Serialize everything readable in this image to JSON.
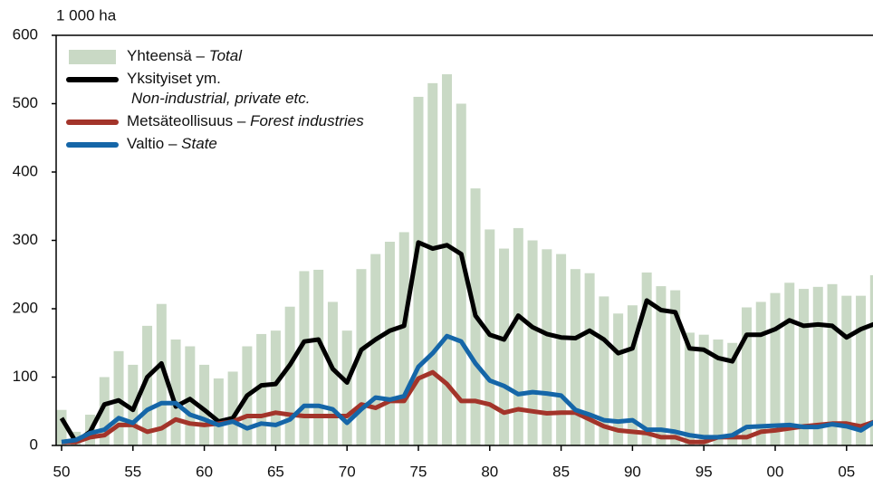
{
  "chart_data": {
    "type": "bar",
    "y_label": "1 000 ha",
    "categories": [
      "50",
      null,
      null,
      null,
      null,
      "55",
      null,
      null,
      null,
      null,
      "60",
      null,
      null,
      null,
      null,
      "65",
      null,
      null,
      null,
      null,
      "70",
      null,
      null,
      null,
      null,
      "75",
      null,
      null,
      null,
      null,
      "80",
      null,
      null,
      null,
      null,
      "85",
      null,
      null,
      null,
      null,
      "90",
      null,
      null,
      null,
      null,
      "95",
      null,
      null,
      null,
      null,
      "00",
      null,
      null,
      null,
      null,
      "05",
      null,
      null
    ],
    "ylim": [
      0,
      600
    ],
    "yticks": [
      0,
      100,
      200,
      300,
      400,
      500,
      600
    ],
    "grid": false,
    "series": [
      {
        "type": "bar",
        "color": "#c9d9c5",
        "name": [
          {
            "text": "Yhteensä – "
          },
          {
            "text": "Total",
            "italic": true
          }
        ],
        "values": [
          52,
          20,
          45,
          100,
          138,
          118,
          175,
          207,
          155,
          145,
          118,
          98,
          108,
          145,
          163,
          168,
          203,
          255,
          257,
          210,
          168,
          258,
          280,
          298,
          312,
          510,
          530,
          543,
          500,
          376,
          316,
          288,
          318,
          300,
          287,
          280,
          258,
          252,
          218,
          193,
          205,
          253,
          233,
          227,
          165,
          162,
          155,
          150,
          202,
          210,
          223,
          238,
          229,
          232,
          236,
          219,
          219,
          249
        ]
      },
      {
        "type": "line",
        "color": "#000000",
        "name": [
          {
            "text": "Yksityiset ym."
          },
          {
            "text": "Non-industrial, private etc.",
            "italic": true,
            "newline": true
          }
        ],
        "values": [
          40,
          5,
          20,
          60,
          66,
          52,
          100,
          120,
          57,
          68,
          52,
          35,
          40,
          73,
          88,
          90,
          118,
          152,
          155,
          112,
          92,
          140,
          155,
          168,
          175,
          297,
          288,
          293,
          280,
          190,
          162,
          155,
          190,
          173,
          163,
          158,
          157,
          168,
          155,
          135,
          142,
          212,
          198,
          195,
          142,
          140,
          128,
          123,
          162,
          162,
          170,
          183,
          175,
          177,
          175,
          158,
          170,
          178
        ]
      },
      {
        "type": "line",
        "color": "#a3342a",
        "name": [
          {
            "text": "Metsäteollisuus – "
          },
          {
            "text": "Forest industries",
            "italic": true
          }
        ],
        "values": [
          5,
          5,
          12,
          15,
          30,
          30,
          20,
          25,
          38,
          32,
          30,
          32,
          35,
          43,
          43,
          48,
          45,
          43,
          43,
          43,
          43,
          60,
          55,
          65,
          65,
          98,
          107,
          90,
          65,
          65,
          60,
          48,
          53,
          50,
          47,
          48,
          48,
          38,
          28,
          22,
          20,
          18,
          12,
          12,
          5,
          5,
          12,
          12,
          12,
          20,
          22,
          25,
          28,
          30,
          32,
          32,
          28,
          35
        ]
      },
      {
        "type": "line",
        "color": "#1566a8",
        "name": [
          {
            "text": "Valtio – "
          },
          {
            "text": "State",
            "italic": true
          }
        ],
        "values": [
          5,
          8,
          18,
          23,
          40,
          33,
          52,
          62,
          62,
          45,
          38,
          30,
          35,
          25,
          32,
          30,
          38,
          58,
          58,
          53,
          33,
          53,
          70,
          67,
          72,
          115,
          135,
          160,
          152,
          120,
          95,
          87,
          75,
          78,
          76,
          73,
          52,
          45,
          37,
          35,
          37,
          23,
          23,
          20,
          15,
          12,
          12,
          15,
          27,
          28,
          29,
          30,
          27,
          27,
          31,
          28,
          22,
          35
        ]
      }
    ]
  }
}
